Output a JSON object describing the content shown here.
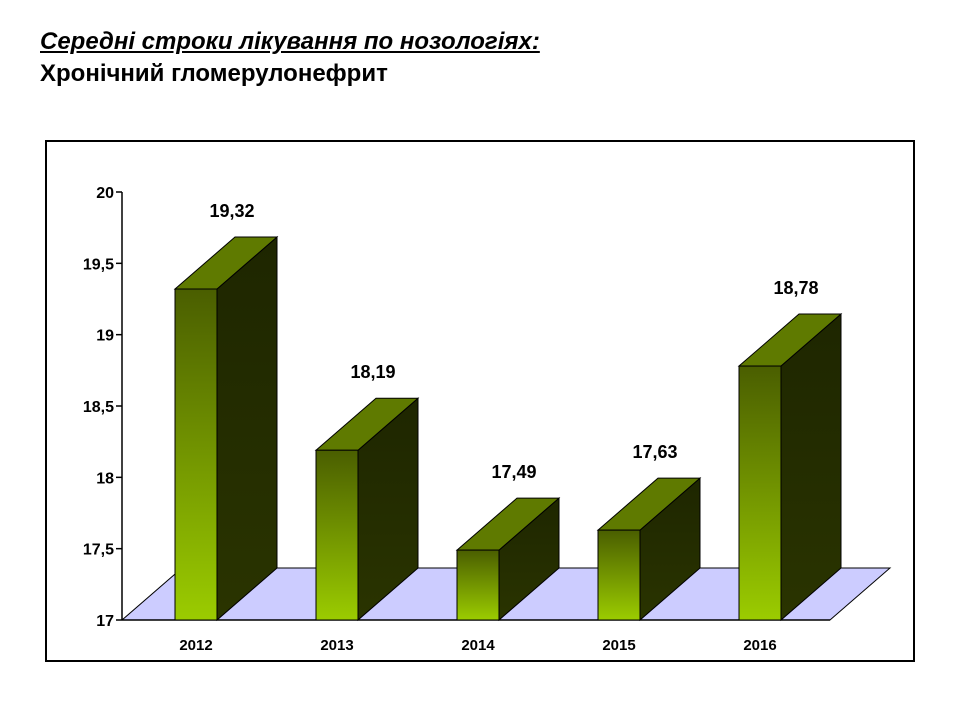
{
  "header": {
    "title": "Середні строки лікування по нозологіях:",
    "subtitle": "Хронічний гломерулонефрит"
  },
  "chart_data": {
    "type": "bar",
    "title": "",
    "xlabel": "",
    "ylabel": "",
    "categories": [
      "2012",
      "2013",
      "2014",
      "2015",
      "2016"
    ],
    "values": [
      19.32,
      18.19,
      17.49,
      17.63,
      18.78
    ],
    "value_labels": [
      "19,32",
      "18,19",
      "17,49",
      "17,63",
      "18,78"
    ],
    "ylim": [
      17,
      20
    ],
    "yticks": [
      17,
      17.5,
      18,
      18.5,
      19,
      19.5,
      20
    ],
    "ytick_labels": [
      "17",
      "17,5",
      "18",
      "18,5",
      "19",
      "19,5",
      "20"
    ],
    "grid": false,
    "legend": "none",
    "style": "3d",
    "colors": {
      "bar_front_top": "#4a5e00",
      "bar_front_bottom": "#9bcc00",
      "bar_side": "#2a3400",
      "bar_top": "#5f7a00",
      "floor": "#ccccff"
    }
  }
}
